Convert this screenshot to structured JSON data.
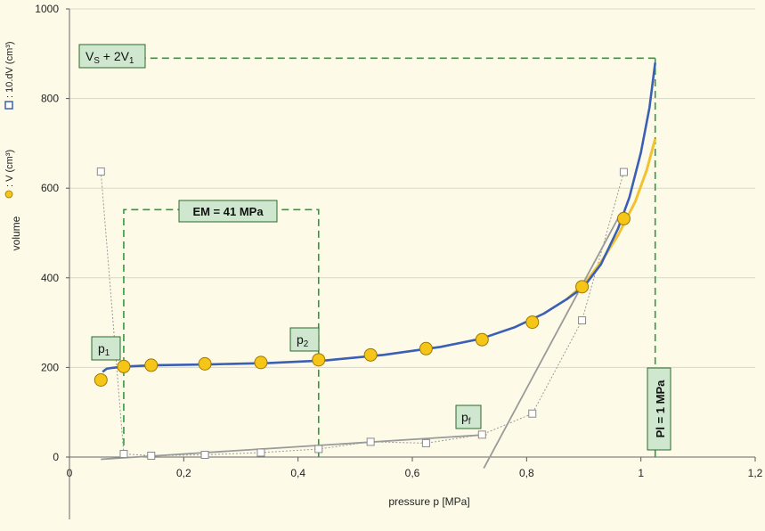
{
  "chart_data": {
    "type": "scatter",
    "xlabel": "pressure p [MPa]",
    "ylabel_main": "volume",
    "ylabel_v": ": V (cm³)",
    "ylabel_dv": ": 10.dV (cm³)",
    "xlim": [
      0,
      1.2
    ],
    "ylim": [
      0,
      1000
    ],
    "x_ticks": [
      {
        "v": 0,
        "label": "0"
      },
      {
        "v": 0.2,
        "label": "0,2"
      },
      {
        "v": 0.4,
        "label": "0,4"
      },
      {
        "v": 0.6,
        "label": "0,6"
      },
      {
        "v": 0.8,
        "label": "0,8"
      },
      {
        "v": 1.0,
        "label": "1"
      },
      {
        "v": 1.2,
        "label": "1,2"
      }
    ],
    "y_ticks": [
      {
        "v": 0,
        "label": "0"
      },
      {
        "v": 200,
        "label": "200"
      },
      {
        "v": 400,
        "label": "400"
      },
      {
        "v": 600,
        "label": "600"
      },
      {
        "v": 800,
        "label": "800"
      },
      {
        "v": 1000,
        "label": "1000"
      }
    ],
    "grid": true,
    "colors": {
      "v_points": "#f5c518",
      "v_point_stroke": "#a07800",
      "blue_curve": "#3b5fb5",
      "yellow_curve": "#f2c230",
      "dv_points_stroke": "#8a8a8a",
      "dv_line": "#9a9a9a",
      "tangent": "#9a9a9a",
      "guides": "#2e9a3e",
      "label_box_fill": "#cfe6cf",
      "label_box_stroke": "#2b6b2b",
      "grid": "#d8d8c8",
      "background": "#fdfbe8"
    },
    "series": [
      {
        "key": "v",
        "marker": "circle",
        "x": [
          0.055,
          0.095,
          0.143,
          0.237,
          0.335,
          0.436,
          0.527,
          0.624,
          0.722,
          0.81,
          0.897,
          0.97
        ],
        "y": [
          172,
          202,
          205,
          208,
          211,
          217,
          228,
          242,
          262,
          301,
          380,
          532
        ]
      },
      {
        "key": "dv",
        "marker": "square",
        "x": [
          0.055,
          0.095,
          0.143,
          0.237,
          0.335,
          0.436,
          0.527,
          0.624,
          0.722,
          0.81,
          0.897,
          0.97
        ],
        "y": [
          637,
          7,
          3,
          5,
          10,
          18,
          34,
          31,
          50,
          97,
          305,
          636
        ]
      }
    ],
    "blue_curve": {
      "x": [
        0.058,
        0.065,
        0.075,
        0.095,
        0.15,
        0.25,
        0.35,
        0.45,
        0.55,
        0.65,
        0.72,
        0.78,
        0.83,
        0.87,
        0.9,
        0.93,
        0.96,
        0.98,
        1.0,
        1.015,
        1.025
      ],
      "y": [
        190,
        197,
        199,
        202,
        205,
        207,
        210,
        216,
        228,
        246,
        264,
        290,
        320,
        352,
        380,
        430,
        510,
        580,
        680,
        780,
        880
      ]
    },
    "yellow_curve": {
      "x": [
        0.87,
        0.9,
        0.93,
        0.96,
        0.99,
        1.01,
        1.025
      ],
      "y": [
        352,
        385,
        435,
        495,
        570,
        640,
        710
      ]
    },
    "tangent_low": {
      "x": [
        0.055,
        0.73
      ],
      "y": [
        -5,
        50
      ]
    },
    "tangent_high": {
      "x": [
        0.725,
        0.965
      ],
      "y": [
        -25,
        545
      ]
    },
    "guides": {
      "vs_line": {
        "x0": 0.02,
        "x1": 1.025,
        "y": 890
      },
      "pl_line": {
        "x": 1.025,
        "y0": 0,
        "y1": 890
      },
      "em_box": {
        "x0": 0.095,
        "x1": 0.436,
        "y0": 0,
        "y1": 552
      }
    },
    "annotations": [
      {
        "key": "vs",
        "text": "VS + 2V1"
      },
      {
        "key": "em",
        "text": "EM = 41 MPa"
      },
      {
        "key": "p1",
        "text": "p1"
      },
      {
        "key": "p2",
        "text": "p2"
      },
      {
        "key": "pf",
        "text": "pf"
      },
      {
        "key": "pl",
        "text": "Pl = 1 MPa"
      }
    ]
  }
}
